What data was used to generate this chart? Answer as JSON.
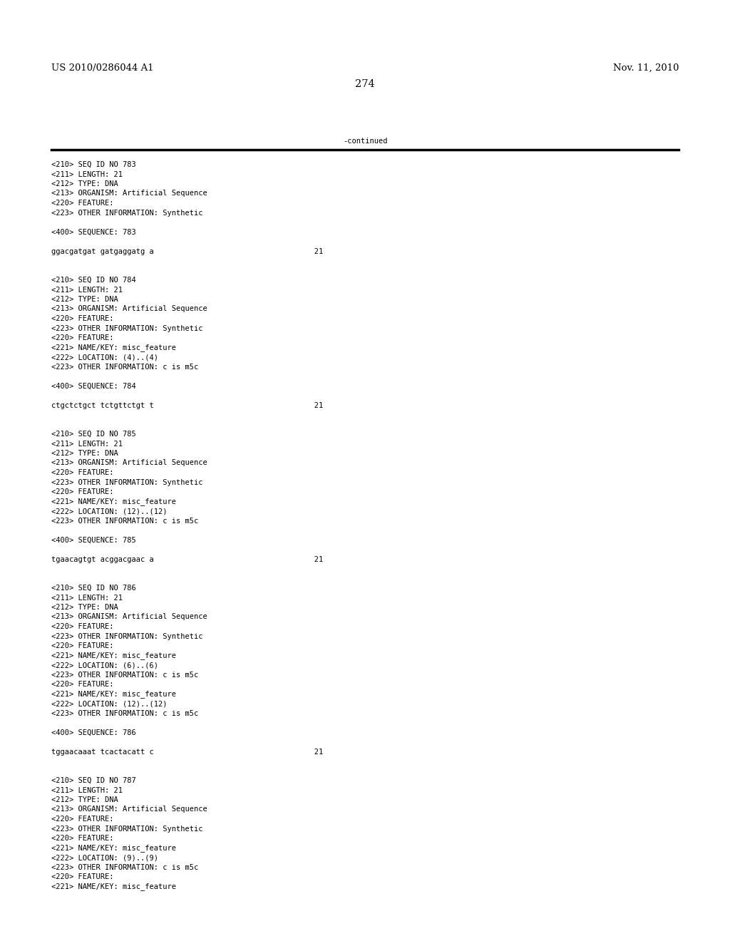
{
  "background_color": "#ffffff",
  "header_left": "US 2010/0286044 A1",
  "header_right": "Nov. 11, 2010",
  "page_number": "274",
  "continued_label": "-continued",
  "monospace_font_size": 7.5,
  "header_font_size": 9.5,
  "page_num_font_size": 10.5,
  "content_lines": [
    "<210> SEQ ID NO 783",
    "<211> LENGTH: 21",
    "<212> TYPE: DNA",
    "<213> ORGANISM: Artificial Sequence",
    "<220> FEATURE:",
    "<223> OTHER INFORMATION: Synthetic",
    "",
    "<400> SEQUENCE: 783",
    "",
    "ggacgatgat gatgaggatg a                                    21",
    "",
    "",
    "<210> SEQ ID NO 784",
    "<211> LENGTH: 21",
    "<212> TYPE: DNA",
    "<213> ORGANISM: Artificial Sequence",
    "<220> FEATURE:",
    "<223> OTHER INFORMATION: Synthetic",
    "<220> FEATURE:",
    "<221> NAME/KEY: misc_feature",
    "<222> LOCATION: (4)..(4)",
    "<223> OTHER INFORMATION: c is m5c",
    "",
    "<400> SEQUENCE: 784",
    "",
    "ctgctctgct tctgttctgt t                                    21",
    "",
    "",
    "<210> SEQ ID NO 785",
    "<211> LENGTH: 21",
    "<212> TYPE: DNA",
    "<213> ORGANISM: Artificial Sequence",
    "<220> FEATURE:",
    "<223> OTHER INFORMATION: Synthetic",
    "<220> FEATURE:",
    "<221> NAME/KEY: misc_feature",
    "<222> LOCATION: (12)..(12)",
    "<223> OTHER INFORMATION: c is m5c",
    "",
    "<400> SEQUENCE: 785",
    "",
    "tgaacagtgt acggacgaac a                                    21",
    "",
    "",
    "<210> SEQ ID NO 786",
    "<211> LENGTH: 21",
    "<212> TYPE: DNA",
    "<213> ORGANISM: Artificial Sequence",
    "<220> FEATURE:",
    "<223> OTHER INFORMATION: Synthetic",
    "<220> FEATURE:",
    "<221> NAME/KEY: misc_feature",
    "<222> LOCATION: (6)..(6)",
    "<223> OTHER INFORMATION: c is m5c",
    "<220> FEATURE:",
    "<221> NAME/KEY: misc_feature",
    "<222> LOCATION: (12)..(12)",
    "<223> OTHER INFORMATION: c is m5c",
    "",
    "<400> SEQUENCE: 786",
    "",
    "tggaacaaat tcactacatt c                                    21",
    "",
    "",
    "<210> SEQ ID NO 787",
    "<211> LENGTH: 21",
    "<212> TYPE: DNA",
    "<213> ORGANISM: Artificial Sequence",
    "<220> FEATURE:",
    "<223> OTHER INFORMATION: Synthetic",
    "<220> FEATURE:",
    "<221> NAME/KEY: misc_feature",
    "<222> LOCATION: (9)..(9)",
    "<223> OTHER INFORMATION: c is m5c",
    "<220> FEATURE:",
    "<221> NAME/KEY: misc_feature"
  ]
}
